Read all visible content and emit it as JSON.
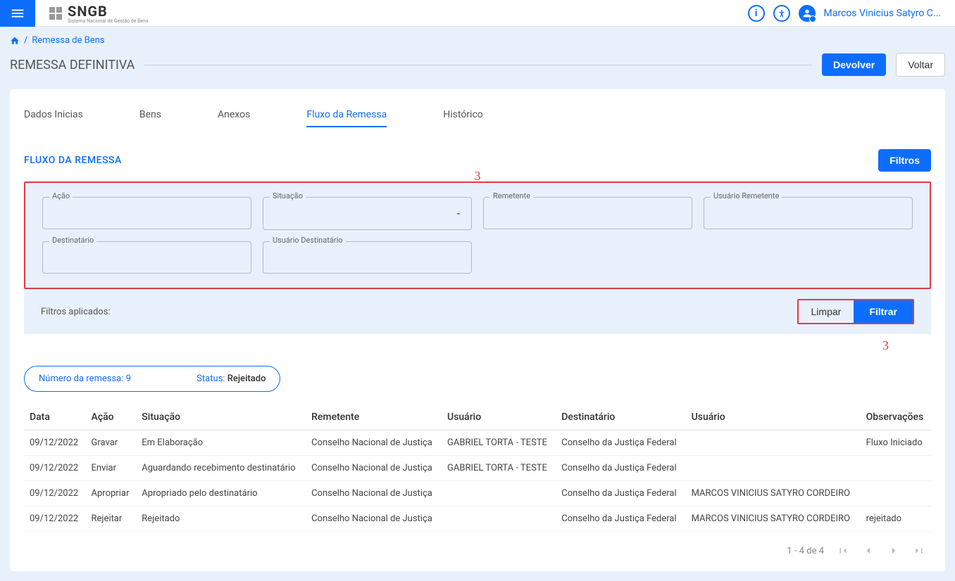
{
  "header": {
    "logo_text": "SNGB",
    "logo_subtitle": "Sistema Nacional de Gestão de Bens",
    "user_name": "Marcos Vinicius Satyro C..."
  },
  "breadcrumb": {
    "item": "Remessa de Bens"
  },
  "page": {
    "title": "REMESSA DEFINITIVA",
    "devolver_btn": "Devolver",
    "voltar_btn": "Voltar"
  },
  "tabs": {
    "dados": "Dados Inicias",
    "bens": "Bens",
    "anexos": "Anexos",
    "fluxo": "Fluxo da Remessa",
    "historico": "Histórico"
  },
  "section": {
    "title": "FLUXO DA REMESSA",
    "filtros_btn": "Filtros"
  },
  "filters": {
    "acao": "Ação",
    "situacao": "Situação",
    "remetente": "Remetente",
    "usuario_remetente": "Usuário Remetente",
    "destinatario": "Destinatário",
    "usuario_destinatario": "Usuário Destinatário",
    "applied_label": "Filtros aplicados:",
    "limpar_btn": "Limpar",
    "filtrar_btn": "Filtrar"
  },
  "chip": {
    "numero_label": "Número da remessa:",
    "numero_value": "9",
    "status_label": "Status:",
    "status_value": "Rejeitado"
  },
  "table": {
    "headers": {
      "data": "Data",
      "acao": "Ação",
      "situacao": "Situação",
      "remetente": "Remetente",
      "usuario1": "Usuário",
      "destinatario": "Destinatário",
      "usuario2": "Usuário",
      "obs": "Observações"
    },
    "rows": [
      {
        "data": "09/12/2022",
        "acao": "Gravar",
        "situacao": "Em Elaboração",
        "remetente": "Conselho Nacional de Justiça",
        "usuario1": "GABRIEL TORTA - TESTE",
        "destinatario": "Conselho da Justiça Federal",
        "usuario2": "",
        "obs": "Fluxo Iniciado"
      },
      {
        "data": "09/12/2022",
        "acao": "Enviar",
        "situacao": "Aguardando recebimento destinatário",
        "remetente": "Conselho Nacional de Justiça",
        "usuario1": "GABRIEL TORTA - TESTE",
        "destinatario": "Conselho da Justiça Federal",
        "usuario2": "",
        "obs": ""
      },
      {
        "data": "09/12/2022",
        "acao": "Apropriar",
        "situacao": "Apropriado pelo destinatário",
        "remetente": "Conselho Nacional de Justiça",
        "usuario1": "",
        "destinatario": "Conselho da Justiça Federal",
        "usuario2": "MARCOS VINICIUS SATYRO CORDEIRO",
        "obs": ""
      },
      {
        "data": "09/12/2022",
        "acao": "Rejeitar",
        "situacao": "Rejeitado",
        "remetente": "Conselho Nacional de Justiça",
        "usuario1": "",
        "destinatario": "Conselho da Justiça Federal",
        "usuario2": "MARCOS VINICIUS SATYRO CORDEIRO",
        "obs": "rejeitado"
      }
    ]
  },
  "pagination": {
    "label": "1 - 4 de 4"
  },
  "annotations": {
    "marker": "3"
  }
}
